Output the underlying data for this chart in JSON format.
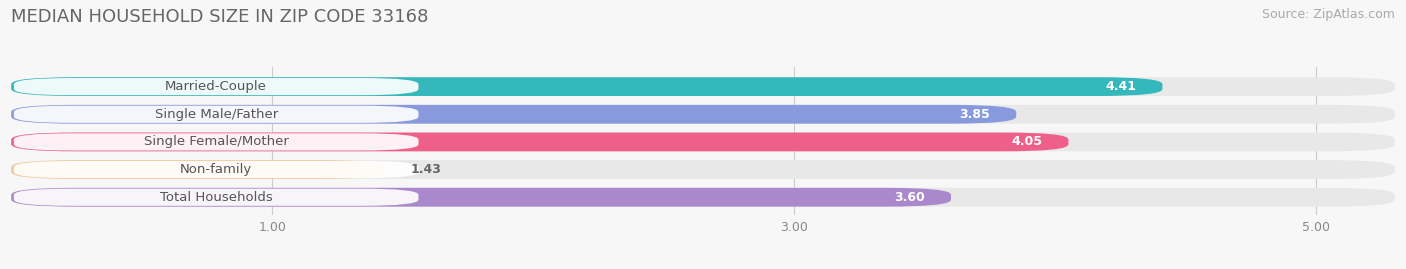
{
  "title": "MEDIAN HOUSEHOLD SIZE IN ZIP CODE 33168",
  "source": "Source: ZipAtlas.com",
  "categories": [
    "Married-Couple",
    "Single Male/Father",
    "Single Female/Mother",
    "Non-family",
    "Total Households"
  ],
  "values": [
    4.41,
    3.85,
    4.05,
    1.43,
    3.6
  ],
  "bar_colors": [
    "#35b8bb",
    "#8899dd",
    "#ee5f8a",
    "#f5c89a",
    "#aa88cc"
  ],
  "xlim": [
    0,
    5.3
  ],
  "xmin": 0,
  "xticks": [
    1.0,
    3.0,
    5.0
  ],
  "xtick_labels": [
    "1.00",
    "3.00",
    "5.00"
  ],
  "title_fontsize": 13,
  "source_fontsize": 9,
  "label_fontsize": 9.5,
  "value_fontsize": 9,
  "bar_height": 0.68,
  "background_color": "#f7f7f7",
  "bar_bg_color": "#e8e8e8",
  "label_bg_color": "#ffffff",
  "label_text_color": "#555555",
  "value_text_color_inside": "#ffffff",
  "value_text_color_outside": "#666666"
}
